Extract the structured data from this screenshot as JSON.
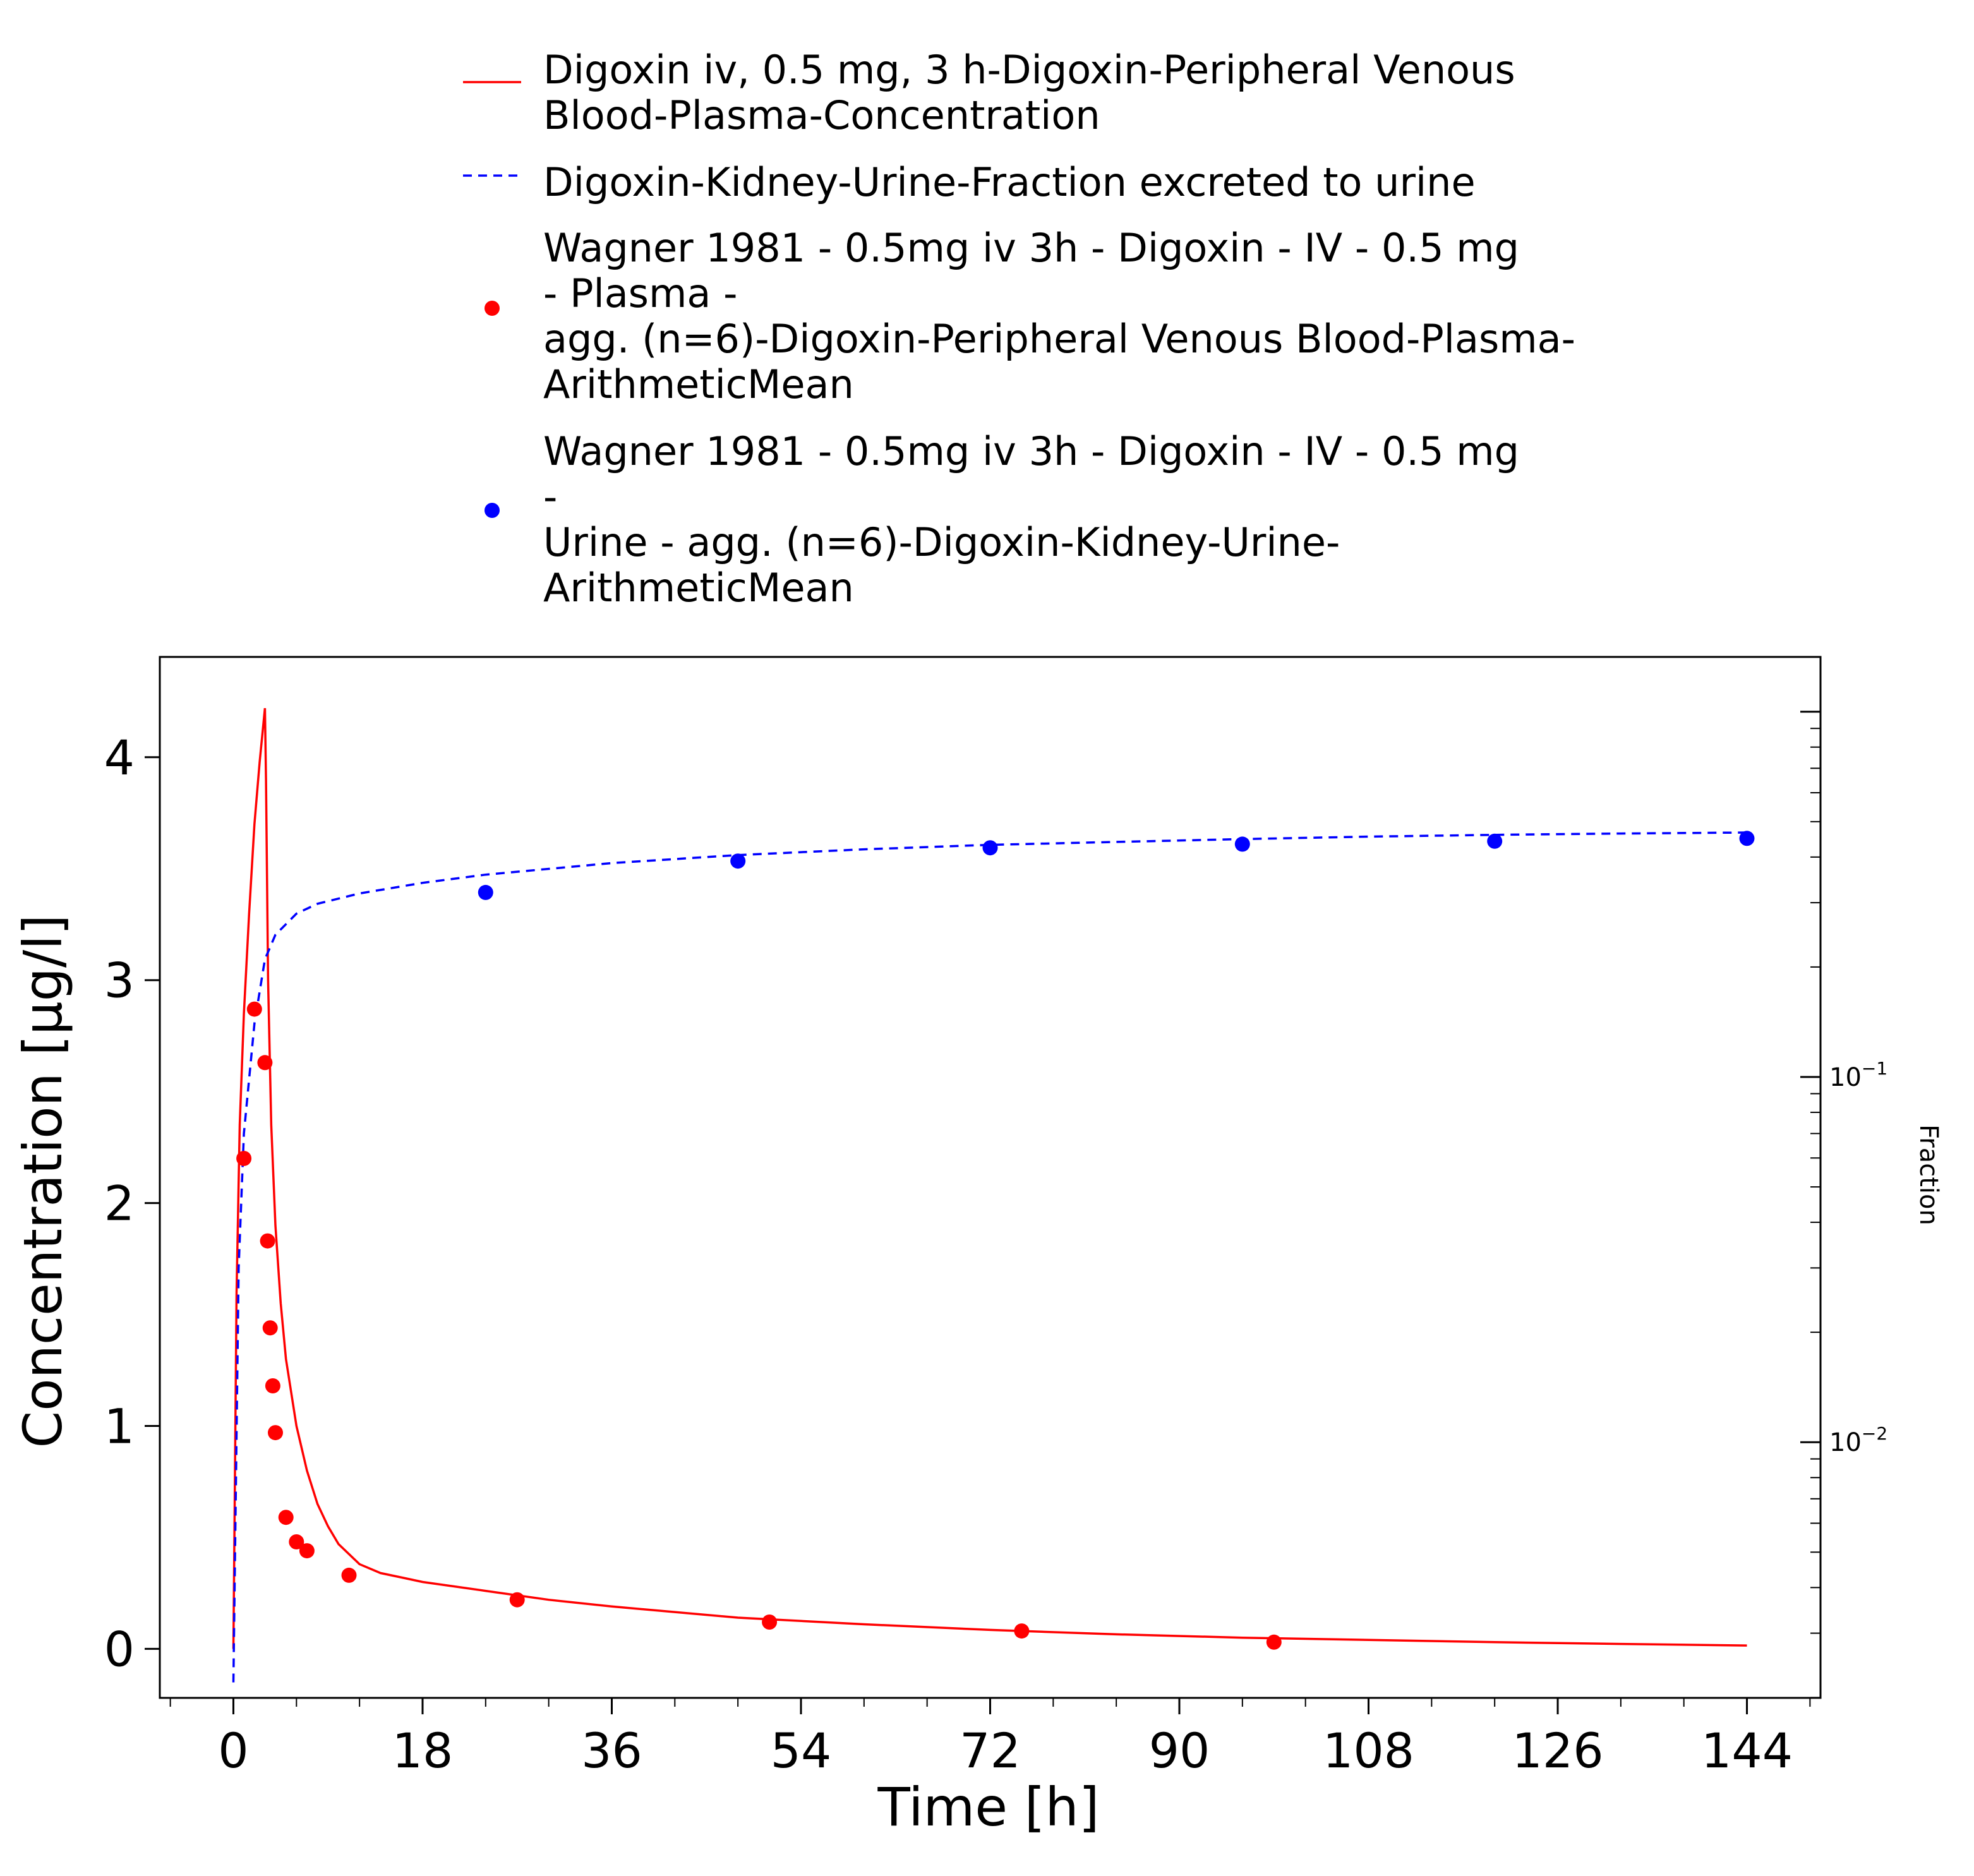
{
  "chart_data": {
    "type": "scatter",
    "title": "",
    "xlabel": "Time [h]",
    "ylabel": "Concentration [µg/l]",
    "y2label": "Fraction",
    "xlim": [
      -7,
      151
    ],
    "ylim": [
      -0.22,
      4.45
    ],
    "y2lim_log10": [
      -2.7,
      0.15
    ],
    "y2_scale": "log",
    "grid": false,
    "legend_placement": "top",
    "x_ticks": [
      0,
      18,
      36,
      54,
      72,
      90,
      108,
      126,
      144
    ],
    "x_tick_labels": [
      "0",
      "18",
      "36",
      "54",
      "72",
      "90",
      "108",
      "126",
      "144"
    ],
    "y_ticks": [
      0,
      1,
      2,
      3,
      4
    ],
    "y_tick_labels": [
      "0",
      "1",
      "2",
      "3",
      "4"
    ],
    "y2_ticks": [
      {
        "value": 0.01,
        "base": "10",
        "exp": "−2"
      },
      {
        "value": 0.1,
        "base": "10",
        "exp": "−1"
      }
    ],
    "series": [
      {
        "name": "Digoxin iv, 0.5 mg, 3 h-Digoxin-Peripheral Venous Blood-Plasma-Concentration",
        "legend_lines": [
          "Digoxin iv, 0.5 mg, 3 h-Digoxin-Peripheral Venous",
          "Blood-Plasma-Concentration"
        ],
        "kind": "line",
        "style": "solid",
        "axis": "left",
        "color": "#ff0000",
        "x": [
          0,
          0.3,
          0.6,
          1.0,
          1.5,
          2.0,
          2.5,
          3.0,
          3.1,
          3.3,
          3.6,
          4.0,
          4.5,
          5.0,
          6.0,
          7.0,
          8.0,
          9.0,
          10.0,
          12.0,
          14.0,
          16.0,
          18.0,
          24.0,
          30.0,
          36.0,
          48.0,
          60.0,
          72.0,
          84.0,
          96.0,
          108.0,
          120.0,
          132.0,
          144.0
        ],
        "y": [
          0,
          1.6,
          2.35,
          2.85,
          3.3,
          3.7,
          3.98,
          4.22,
          3.9,
          3.0,
          2.35,
          1.9,
          1.55,
          1.3,
          1.0,
          0.8,
          0.65,
          0.55,
          0.47,
          0.38,
          0.34,
          0.32,
          0.3,
          0.26,
          0.22,
          0.19,
          0.14,
          0.11,
          0.085,
          0.065,
          0.05,
          0.04,
          0.03,
          0.022,
          0.015
        ]
      },
      {
        "name": "Digoxin-Kidney-Urine-Fraction excreted to urine",
        "legend_lines": [
          "Digoxin-Kidney-Urine-Fraction excreted to urine"
        ],
        "kind": "line",
        "style": "dashed",
        "axis": "right",
        "color": "#0000ff",
        "x": [
          0,
          0.5,
          1.0,
          2.0,
          3.0,
          4.0,
          6.0,
          8.0,
          12.0,
          18.0,
          24.0,
          36.0,
          48.0,
          60.0,
          72.0,
          84.0,
          96.0,
          108.0,
          120.0,
          132.0,
          144.0
        ],
        "y": [
          0.0022,
          0.03,
          0.07,
          0.14,
          0.21,
          0.245,
          0.28,
          0.298,
          0.318,
          0.34,
          0.358,
          0.385,
          0.405,
          0.42,
          0.432,
          0.44,
          0.448,
          0.455,
          0.46,
          0.464,
          0.467
        ]
      },
      {
        "name": "Wagner 1981 - 0.5mg iv 3h - Digoxin - IV - 0.5 mg - Plasma - agg. (n=6)-Digoxin-Peripheral Venous Blood-Plasma-ArithmeticMean",
        "legend_lines": [
          "Wagner 1981 - 0.5mg iv 3h - Digoxin - IV - 0.5 mg",
          "- Plasma -",
          "agg. (n=6)-Digoxin-Peripheral Venous Blood-Plasma-",
          "ArithmeticMean"
        ],
        "kind": "points",
        "axis": "left",
        "color": "#ff0000",
        "x": [
          1.0,
          2.0,
          3.0,
          3.25,
          3.5,
          3.75,
          4.0,
          5.0,
          6.0,
          7.0,
          11.0,
          27.0,
          51.0,
          75.0,
          99.0
        ],
        "y": [
          2.2,
          2.87,
          2.63,
          1.83,
          1.44,
          1.18,
          0.97,
          0.59,
          0.48,
          0.44,
          0.33,
          0.22,
          0.12,
          0.08,
          0.03
        ]
      },
      {
        "name": "Wagner 1981 - 0.5mg iv 3h - Digoxin - IV - 0.5 mg - Urine - agg. (n=6)-Digoxin-Kidney-Urine-ArithmeticMean",
        "legend_lines": [
          "Wagner 1981 - 0.5mg iv 3h - Digoxin - IV - 0.5 mg",
          "-",
          "Urine - agg. (n=6)-Digoxin-Kidney-Urine-",
          "ArithmeticMean"
        ],
        "kind": "points",
        "axis": "right",
        "color": "#0000ff",
        "x": [
          24.0,
          48.0,
          72.0,
          96.0,
          120.0,
          144.0
        ],
        "y": [
          0.32,
          0.39,
          0.424,
          0.434,
          0.442,
          0.45
        ]
      }
    ]
  }
}
